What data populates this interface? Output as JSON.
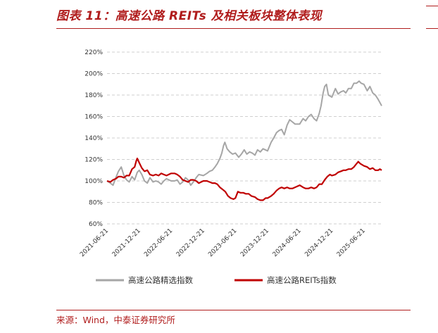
{
  "header": {
    "title": "图表 11：高速公路 REITs 及相关板块整体表现"
  },
  "source": {
    "text": "来源：Wind，中泰证券研究所"
  },
  "chart_data": {
    "type": "line",
    "title": "",
    "xlabel": "",
    "ylabel": "",
    "x_range": [
      "2021-06-21",
      "2025-09-30"
    ],
    "ylim": [
      60,
      220
    ],
    "y_ticks": [
      60,
      80,
      100,
      120,
      140,
      160,
      180,
      200,
      220
    ],
    "y_tick_labels": [
      "60%",
      "80%",
      "100%",
      "120%",
      "140%",
      "160%",
      "180%",
      "200%",
      "220%"
    ],
    "x_tick_labels": [
      "2021-06-21",
      "2021-12-21",
      "2022-06-21",
      "2022-12-21",
      "2023-06-21",
      "2023-12-21",
      "2024-06-21",
      "2024-12-21",
      "2025-06-21"
    ],
    "grid": "horizontal-dashed",
    "legend": "bottom",
    "series": [
      {
        "name": "高速公路精选指数",
        "color": "#a6a6a6",
        "points": [
          [
            "2021-06-21",
            100
          ],
          [
            "2021-07-10",
            98
          ],
          [
            "2021-07-25",
            96
          ],
          [
            "2021-08-10",
            103
          ],
          [
            "2021-08-25",
            109
          ],
          [
            "2021-09-10",
            113
          ],
          [
            "2021-09-25",
            105
          ],
          [
            "2021-10-10",
            101
          ],
          [
            "2021-10-25",
            99
          ],
          [
            "2021-11-10",
            104
          ],
          [
            "2021-11-25",
            101
          ],
          [
            "2021-12-10",
            108
          ],
          [
            "2021-12-21",
            110
          ],
          [
            "2022-01-05",
            106
          ],
          [
            "2022-01-20",
            100
          ],
          [
            "2022-02-05",
            98
          ],
          [
            "2022-02-20",
            103
          ],
          [
            "2022-03-10",
            99
          ],
          [
            "2022-03-25",
            100
          ],
          [
            "2022-04-10",
            99
          ],
          [
            "2022-04-25",
            97
          ],
          [
            "2022-05-10",
            100
          ],
          [
            "2022-05-25",
            102
          ],
          [
            "2022-06-21",
            100
          ],
          [
            "2022-07-10",
            100
          ],
          [
            "2022-07-25",
            101
          ],
          [
            "2022-08-10",
            97
          ],
          [
            "2022-08-25",
            99
          ],
          [
            "2022-09-10",
            103
          ],
          [
            "2022-09-25",
            101
          ],
          [
            "2022-10-10",
            96
          ],
          [
            "2022-10-25",
            99
          ],
          [
            "2022-11-10",
            103
          ],
          [
            "2022-11-25",
            106
          ],
          [
            "2022-12-21",
            105
          ],
          [
            "2023-01-10",
            107
          ],
          [
            "2023-01-25",
            109
          ],
          [
            "2023-02-10",
            110
          ],
          [
            "2023-02-25",
            113
          ],
          [
            "2023-03-10",
            116
          ],
          [
            "2023-03-25",
            121
          ],
          [
            "2023-04-05",
            126
          ],
          [
            "2023-04-15",
            133
          ],
          [
            "2023-04-22",
            136
          ],
          [
            "2023-05-05",
            130
          ],
          [
            "2023-05-20",
            127
          ],
          [
            "2023-06-05",
            125
          ],
          [
            "2023-06-21",
            126
          ],
          [
            "2023-07-10",
            122
          ],
          [
            "2023-07-25",
            125
          ],
          [
            "2023-08-10",
            129
          ],
          [
            "2023-08-25",
            125
          ],
          [
            "2023-09-10",
            127
          ],
          [
            "2023-09-25",
            126
          ],
          [
            "2023-10-10",
            124
          ],
          [
            "2023-10-25",
            129
          ],
          [
            "2023-11-10",
            127
          ],
          [
            "2023-11-25",
            130
          ],
          [
            "2023-12-21",
            128
          ],
          [
            "2024-01-10",
            136
          ],
          [
            "2024-01-25",
            140
          ],
          [
            "2024-02-10",
            145
          ],
          [
            "2024-02-25",
            147
          ],
          [
            "2024-03-10",
            148
          ],
          [
            "2024-03-25",
            143
          ],
          [
            "2024-04-10",
            152
          ],
          [
            "2024-04-25",
            157
          ],
          [
            "2024-05-10",
            155
          ],
          [
            "2024-05-25",
            153
          ],
          [
            "2024-06-21",
            153
          ],
          [
            "2024-07-10",
            158
          ],
          [
            "2024-07-25",
            156
          ],
          [
            "2024-08-10",
            160
          ],
          [
            "2024-08-25",
            162
          ],
          [
            "2024-09-10",
            158
          ],
          [
            "2024-09-25",
            156
          ],
          [
            "2024-10-10",
            163
          ],
          [
            "2024-10-20",
            170
          ],
          [
            "2024-11-01",
            182
          ],
          [
            "2024-11-10",
            188
          ],
          [
            "2024-11-20",
            190
          ],
          [
            "2024-12-01",
            180
          ],
          [
            "2024-12-21",
            178
          ],
          [
            "2025-01-10",
            186
          ],
          [
            "2025-01-25",
            181
          ],
          [
            "2025-02-10",
            183
          ],
          [
            "2025-02-25",
            184
          ],
          [
            "2025-03-10",
            182
          ],
          [
            "2025-03-25",
            186
          ],
          [
            "2025-04-10",
            186
          ],
          [
            "2025-04-25",
            191
          ],
          [
            "2025-05-10",
            191
          ],
          [
            "2025-05-25",
            193
          ],
          [
            "2025-06-05",
            191
          ],
          [
            "2025-06-21",
            190
          ],
          [
            "2025-07-10",
            184
          ],
          [
            "2025-07-25",
            188
          ],
          [
            "2025-08-10",
            182
          ],
          [
            "2025-08-25",
            180
          ],
          [
            "2025-09-10",
            176
          ],
          [
            "2025-09-20",
            173
          ],
          [
            "2025-09-30",
            170
          ]
        ]
      },
      {
        "name": "高速公路REITs指数",
        "color": "#c00000",
        "points": [
          [
            "2021-06-21",
            100
          ],
          [
            "2021-07-10",
            99
          ],
          [
            "2021-07-25",
            101
          ],
          [
            "2021-08-10",
            102
          ],
          [
            "2021-08-25",
            104
          ],
          [
            "2021-09-10",
            104
          ],
          [
            "2021-09-25",
            103
          ],
          [
            "2021-10-10",
            105
          ],
          [
            "2021-10-25",
            105
          ],
          [
            "2021-11-10",
            111
          ],
          [
            "2021-11-25",
            113
          ],
          [
            "2021-12-05",
            119
          ],
          [
            "2021-12-10",
            121
          ],
          [
            "2021-12-21",
            117
          ],
          [
            "2022-01-05",
            112
          ],
          [
            "2022-01-20",
            109
          ],
          [
            "2022-02-05",
            110
          ],
          [
            "2022-02-20",
            106
          ],
          [
            "2022-03-10",
            105
          ],
          [
            "2022-03-25",
            106
          ],
          [
            "2022-04-10",
            105
          ],
          [
            "2022-04-25",
            107
          ],
          [
            "2022-05-10",
            106
          ],
          [
            "2022-05-25",
            105
          ],
          [
            "2022-06-21",
            107
          ],
          [
            "2022-07-10",
            107
          ],
          [
            "2022-07-25",
            106
          ],
          [
            "2022-08-10",
            104
          ],
          [
            "2022-08-25",
            101
          ],
          [
            "2022-09-10",
            100
          ],
          [
            "2022-09-25",
            99
          ],
          [
            "2022-10-10",
            101
          ],
          [
            "2022-10-25",
            101
          ],
          [
            "2022-11-10",
            100
          ],
          [
            "2022-11-25",
            98
          ],
          [
            "2022-12-21",
            100
          ],
          [
            "2023-01-10",
            100
          ],
          [
            "2023-01-25",
            99
          ],
          [
            "2023-02-10",
            98
          ],
          [
            "2023-02-25",
            98
          ],
          [
            "2023-03-10",
            97
          ],
          [
            "2023-03-25",
            94
          ],
          [
            "2023-04-10",
            92
          ],
          [
            "2023-04-25",
            90
          ],
          [
            "2023-05-10",
            86
          ],
          [
            "2023-05-25",
            84
          ],
          [
            "2023-06-10",
            83
          ],
          [
            "2023-06-21",
            84
          ],
          [
            "2023-07-05",
            90
          ],
          [
            "2023-07-20",
            89
          ],
          [
            "2023-08-05",
            89
          ],
          [
            "2023-08-20",
            88
          ],
          [
            "2023-09-05",
            88
          ],
          [
            "2023-09-20",
            86
          ],
          [
            "2023-10-10",
            85
          ],
          [
            "2023-10-25",
            83
          ],
          [
            "2023-11-10",
            82
          ],
          [
            "2023-11-25",
            82
          ],
          [
            "2023-12-10",
            84
          ],
          [
            "2023-12-21",
            84
          ],
          [
            "2024-01-10",
            86
          ],
          [
            "2024-01-25",
            88
          ],
          [
            "2024-02-10",
            91
          ],
          [
            "2024-02-25",
            93
          ],
          [
            "2024-03-10",
            94
          ],
          [
            "2024-03-25",
            93
          ],
          [
            "2024-04-10",
            94
          ],
          [
            "2024-04-25",
            93
          ],
          [
            "2024-05-10",
            93
          ],
          [
            "2024-05-25",
            94
          ],
          [
            "2024-06-21",
            96
          ],
          [
            "2024-07-10",
            94
          ],
          [
            "2024-07-25",
            93
          ],
          [
            "2024-08-10",
            93
          ],
          [
            "2024-08-25",
            94
          ],
          [
            "2024-09-10",
            93
          ],
          [
            "2024-09-25",
            94
          ],
          [
            "2024-10-10",
            97
          ],
          [
            "2024-10-25",
            97
          ],
          [
            "2024-11-10",
            101
          ],
          [
            "2024-11-25",
            104
          ],
          [
            "2024-12-10",
            106
          ],
          [
            "2024-12-21",
            105
          ],
          [
            "2025-01-10",
            106
          ],
          [
            "2025-01-25",
            108
          ],
          [
            "2025-02-10",
            109
          ],
          [
            "2025-02-25",
            110
          ],
          [
            "2025-03-10",
            110
          ],
          [
            "2025-03-25",
            111
          ],
          [
            "2025-04-10",
            111
          ],
          [
            "2025-04-25",
            113
          ],
          [
            "2025-05-10",
            116
          ],
          [
            "2025-05-20",
            118
          ],
          [
            "2025-06-01",
            116
          ],
          [
            "2025-06-21",
            114
          ],
          [
            "2025-07-10",
            113
          ],
          [
            "2025-07-25",
            111
          ],
          [
            "2025-08-10",
            112
          ],
          [
            "2025-08-25",
            110
          ],
          [
            "2025-09-10",
            110
          ],
          [
            "2025-09-20",
            111
          ],
          [
            "2025-09-30",
            110
          ]
        ]
      }
    ]
  }
}
